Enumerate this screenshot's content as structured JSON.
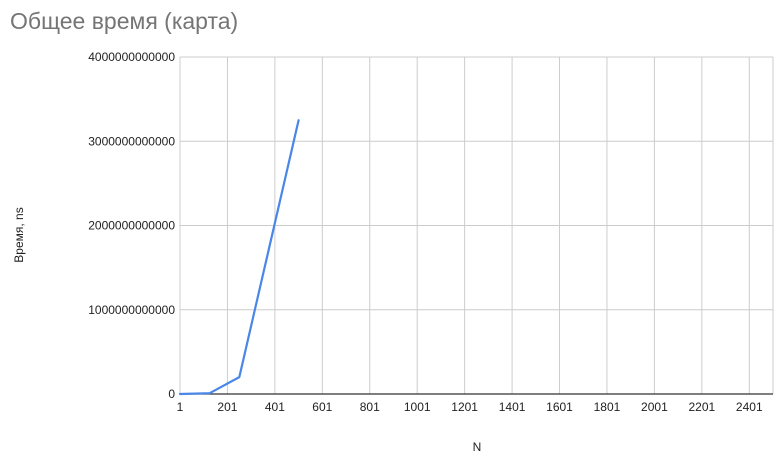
{
  "chart_data": {
    "type": "line",
    "title": "Общее время (карта)",
    "xlabel": "N",
    "ylabel": "Время, ns",
    "xlim": [
      1,
      2501
    ],
    "ylim": [
      0,
      4000000000000
    ],
    "x_ticks": [
      "1",
      "201",
      "401",
      "601",
      "801",
      "1001",
      "1201",
      "1401",
      "1601",
      "1801",
      "2001",
      "2201",
      "2401"
    ],
    "y_ticks": [
      "0",
      "1000000000000",
      "2000000000000",
      "3000000000000",
      "4000000000000"
    ],
    "grid": true,
    "legend": "none",
    "series": [
      {
        "color": "#4a86e8",
        "x": [
          1,
          126,
          251,
          501
        ],
        "y": [
          0,
          10000000000,
          200000000000,
          3250000000000
        ]
      }
    ]
  }
}
